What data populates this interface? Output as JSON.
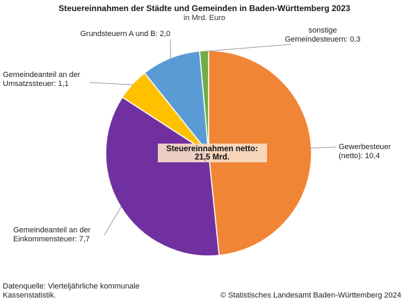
{
  "chart_data": {
    "type": "pie",
    "title": "Steuereinnahmen der Städte und Gemeinden in Baden-Württemberg 2023",
    "subtitle": "in Mrd. Euro",
    "center_label": {
      "line1": "Steuereinnahmen netto:",
      "line2": "21,5 Mrd."
    },
    "slices": [
      {
        "name": "Gewerbesteuer (netto)",
        "value": 10.4,
        "color": "#f08536",
        "label_lines": [
          "Gewerbesteuer",
          "(netto): 10,4"
        ]
      },
      {
        "name": "Gemeindeanteil an der Einkommensteuer",
        "value": 7.7,
        "color": "#7030a0",
        "label_lines": [
          "Gemeindeanteil an der",
          "Einkommensteuer: 7,7"
        ]
      },
      {
        "name": "Gemeindeanteil an der Umsatzssteuer",
        "value": 1.1,
        "color": "#ffc000",
        "label_lines": [
          "Gemeindeanteil an der",
          "Umsatzssteuer: 1,1"
        ]
      },
      {
        "name": "Grundsteuern A und B",
        "value": 2.0,
        "color": "#5b9bd5",
        "label_lines": [
          "Grundsteuern A und B: 2,0"
        ]
      },
      {
        "name": "sonstige Gemeindesteuern",
        "value": 0.3,
        "color": "#70ad47",
        "label_lines": [
          "sonstige",
          "Gemeindesteuern: 0,3"
        ]
      }
    ]
  },
  "footer": {
    "source_line1": "Datenquelle: Vierteljährliche kommunale",
    "source_line2": "Kassenstatistik.",
    "copyright": "© Statistisches Landesamt Baden-Württemberg 2024"
  }
}
